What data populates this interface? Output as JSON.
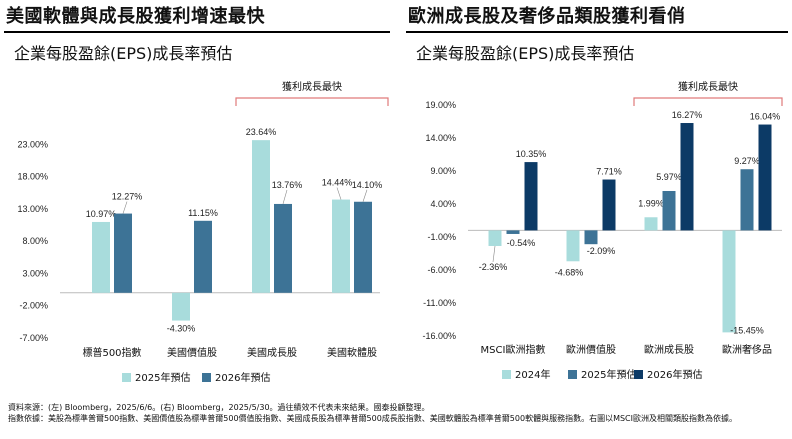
{
  "left": {
    "title": "美國軟體與成長股獲利增速最快",
    "subtitle": "企業每股盈餘(EPS)成長率預估",
    "highlight_label": "獲利成長最快"
  },
  "right": {
    "title": "歐洲成長股及奢侈品類股獲利看俏",
    "subtitle": "企業每股盈餘(EPS)成長率預估",
    "highlight_label": "獲利成長最快"
  },
  "source": {
    "line1": "資料來源：(左) Bloomberg，2025/6/6。(右) Bloomberg，2025/5/30。過往績效不代表未來結果。國泰投顧整理。",
    "line2": "指數依據：美股為標準普爾500指數、美國價值股為標準普爾500價值股指數、美國成長股為標準普爾500成長股指數、美國軟體股為標準普爾500軟體與服務指數。右圖以MSCI歐洲及相關類股指數為依據。"
  },
  "colors": {
    "light": "#a8dcdc",
    "mid": "#3d7396",
    "dark": "#0c3a66",
    "bracket": "#e07a7a"
  },
  "chart_data": [
    {
      "type": "bar",
      "categories": [
        "標普500指數",
        "美國價值股",
        "美國成長股",
        "美國軟體股"
      ],
      "series": [
        {
          "name": "2025年預估",
          "values": [
            10.97,
            -4.3,
            23.64,
            14.44
          ],
          "labels": [
            "10.97%",
            "-4.30%",
            "23.64%",
            "14.44%"
          ],
          "color": "light"
        },
        {
          "name": "2026年預估",
          "values": [
            12.27,
            11.15,
            13.76,
            14.1
          ],
          "labels": [
            "12.27%",
            "11.15%",
            "13.76%",
            "14.10%"
          ],
          "color": "mid"
        }
      ],
      "yticks": [
        "-7.00%",
        "-2.00%",
        "3.00%",
        "8.00%",
        "13.00%",
        "18.00%",
        "23.00%"
      ],
      "ylim": [
        -7,
        28
      ],
      "legend": "bottom",
      "highlight_categories": [
        2,
        3
      ]
    },
    {
      "type": "bar",
      "categories": [
        "MSCI歐洲指數",
        "歐洲價值股",
        "歐洲成長股",
        "歐洲奢侈品"
      ],
      "series": [
        {
          "name": "2024年",
          "values": [
            -2.36,
            -4.68,
            1.99,
            -15.45
          ],
          "labels": [
            "-2.36%",
            "-4.68%",
            "1.99%",
            "-15.45%"
          ],
          "color": "light"
        },
        {
          "name": "2025年預估",
          "values": [
            -0.54,
            -2.09,
            5.97,
            9.27
          ],
          "labels": [
            "-0.54%",
            "-2.09%",
            "5.97%",
            "9.27%"
          ],
          "color": "mid"
        },
        {
          "name": "2026年預估",
          "values": [
            10.35,
            7.71,
            16.27,
            16.04
          ],
          "labels": [
            "10.35%",
            "7.71%",
            "16.27%",
            "16.04%"
          ],
          "color": "dark"
        }
      ],
      "yticks": [
        "-16.00%",
        "-11.00%",
        "-6.00%",
        "-1.00%",
        "4.00%",
        "9.00%",
        "14.00%",
        "19.00%"
      ],
      "ylim": [
        -16,
        19
      ],
      "legend": "bottom",
      "highlight_categories": [
        2,
        3
      ]
    }
  ]
}
